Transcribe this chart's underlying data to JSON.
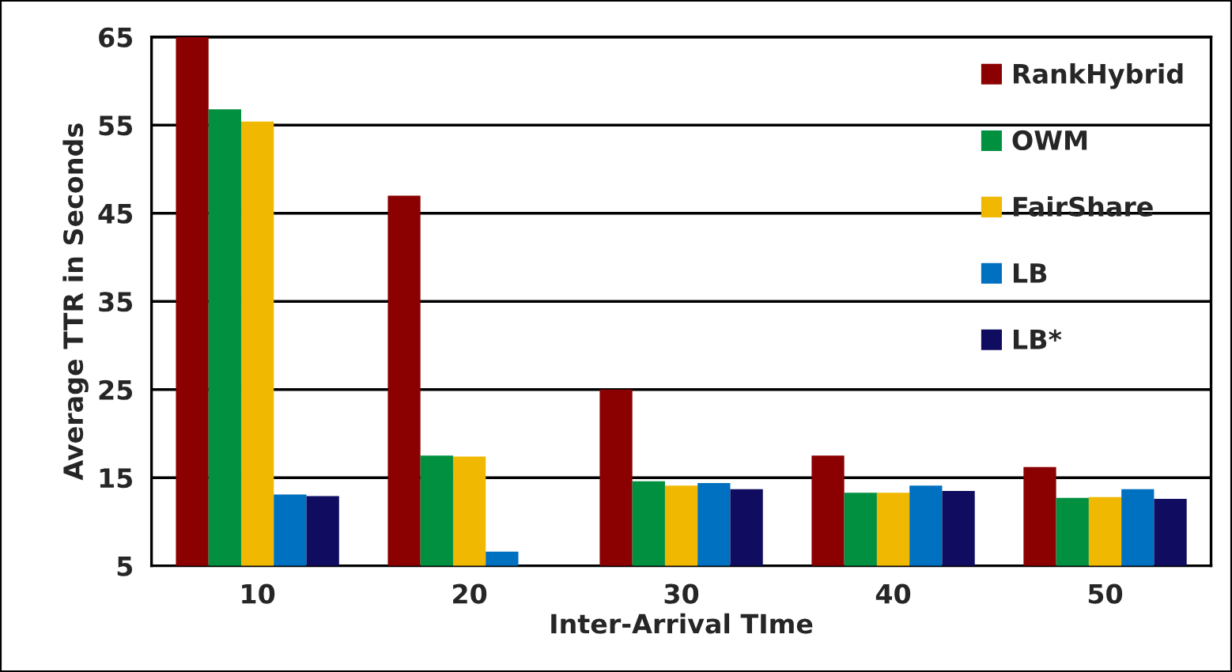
{
  "chart_data": {
    "type": "bar",
    "xlabel": "Inter-Arrival TIme",
    "ylabel": "Average TTR in Seconds",
    "categories": [
      "10",
      "20",
      "30",
      "40",
      "50"
    ],
    "series": [
      {
        "name": "RankHybrid",
        "color": "#8b0000",
        "values": [
          65,
          47.0,
          25.0,
          17.5,
          16.2
        ]
      },
      {
        "name": "OWM",
        "color": "#009040",
        "values": [
          56.8,
          17.5,
          14.6,
          13.3,
          12.7
        ]
      },
      {
        "name": "FairShare",
        "color": "#f0b800",
        "values": [
          55.4,
          17.4,
          14.1,
          13.3,
          12.8
        ]
      },
      {
        "name": "LB",
        "color": "#0070c0",
        "values": [
          13.1,
          6.6,
          14.4,
          14.1,
          13.7
        ]
      },
      {
        "name": "LB*",
        "color": "#100c60",
        "values": [
          12.9,
          null,
          13.7,
          13.5,
          12.6
        ]
      }
    ],
    "ylim": [
      5,
      65
    ],
    "yticks": [
      5,
      15,
      25,
      35,
      45,
      55,
      65
    ],
    "grid": "y",
    "legend": "top right"
  }
}
